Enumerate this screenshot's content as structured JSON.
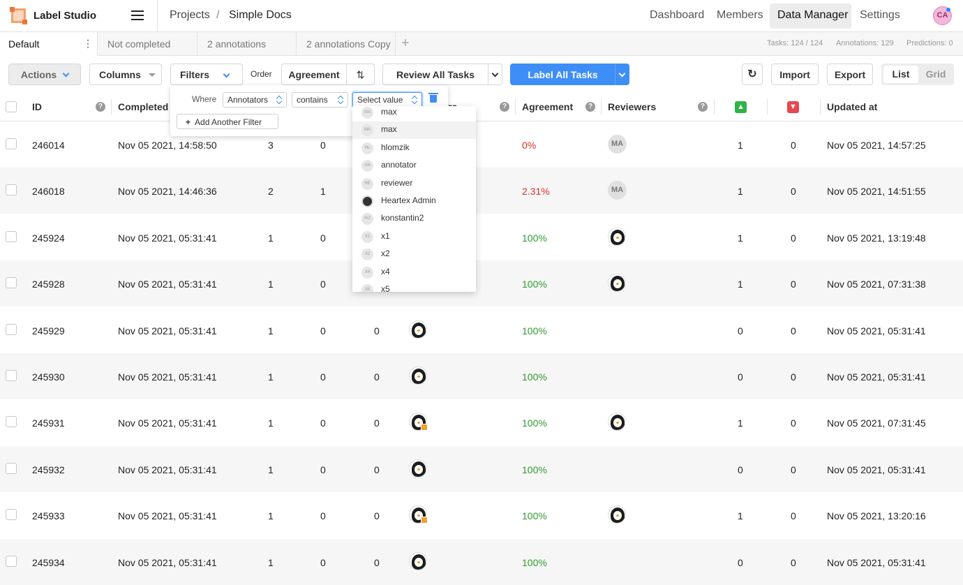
{
  "header": {
    "brand": "Label Studio",
    "breadcrumb_projects": "Projects",
    "breadcrumb_sep": "/",
    "breadcrumb_project": "Simple Docs",
    "nav": [
      "Dashboard",
      "Members",
      "Data Manager",
      "Settings"
    ],
    "avatar_initials": "CA"
  },
  "tabs": [
    "Default",
    "Not completed",
    "2 annotations",
    "2 annotations Copy"
  ],
  "stats": {
    "tasks": "Tasks: 124 / 124",
    "annotations": "Annotations: 129",
    "predictions": "Predictions: 0"
  },
  "toolbar": {
    "actions": "Actions",
    "columns": "Columns",
    "filters": "Filters",
    "order_label": "Order",
    "order_field": "Agreement",
    "review": "Review All Tasks",
    "label": "Label All Tasks",
    "import": "Import",
    "export": "Export",
    "view_list": "List",
    "view_grid": "Grid"
  },
  "filter": {
    "where": "Where",
    "field": "Annotators",
    "operator": "contains",
    "value_placeholder": "Select value",
    "add_filter": "Add Another Filter"
  },
  "dropdown_options": [
    {
      "initials": "MA",
      "label": "max"
    },
    {
      "initials": "MA",
      "label": "max"
    },
    {
      "initials": "HL",
      "label": "hlomzik"
    },
    {
      "initials": "AN",
      "label": "annotator"
    },
    {
      "initials": "RE",
      "label": "reviewer"
    },
    {
      "initials": "",
      "label": "Heartex Admin"
    },
    {
      "initials": "KO",
      "label": "konstantin2"
    },
    {
      "initials": "X1",
      "label": "x1"
    },
    {
      "initials": "X2",
      "label": "x2"
    },
    {
      "initials": "X4",
      "label": "x4"
    },
    {
      "initials": "X5",
      "label": "x5"
    }
  ],
  "columns": {
    "id": "ID",
    "completed": "Completed",
    "annotators_tail": "rs",
    "agreement": "Agreement",
    "reviewers": "Reviewers",
    "updated": "Updated at"
  },
  "rows": [
    {
      "id": "246014",
      "completed": "Nov 05 2021, 14:58:50",
      "c1": "3",
      "c2": "0",
      "c3": "",
      "agreement": "0%",
      "agreement_status": "low",
      "reviewer": "MA",
      "up": "1",
      "down": "0",
      "updated": "Nov 05 2021, 14:57:25"
    },
    {
      "id": "246018",
      "completed": "Nov 05 2021, 14:46:36",
      "c1": "2",
      "c2": "1",
      "c3": "",
      "agreement": "2.31%",
      "agreement_status": "low",
      "reviewer": "MA",
      "up": "1",
      "down": "0",
      "updated": "Nov 05 2021, 14:51:55"
    },
    {
      "id": "245924",
      "completed": "Nov 05 2021, 05:31:41",
      "c1": "1",
      "c2": "0",
      "c3": "",
      "agreement": "100%",
      "agreement_status": "high",
      "reviewer": "penguin",
      "up": "1",
      "down": "0",
      "updated": "Nov 05 2021, 13:19:48"
    },
    {
      "id": "245928",
      "completed": "Nov 05 2021, 05:31:41",
      "c1": "1",
      "c2": "0",
      "c3": "",
      "agreement": "100%",
      "agreement_status": "high",
      "reviewer": "penguin",
      "up": "1",
      "down": "0",
      "updated": "Nov 05 2021, 07:31:38"
    },
    {
      "id": "245929",
      "completed": "Nov 05 2021, 05:31:41",
      "c1": "1",
      "c2": "0",
      "c3": "0",
      "agreement": "100%",
      "agreement_status": "high",
      "reviewer": "",
      "up": "0",
      "down": "0",
      "updated": "Nov 05 2021, 05:31:41"
    },
    {
      "id": "245930",
      "completed": "Nov 05 2021, 05:31:41",
      "c1": "1",
      "c2": "0",
      "c3": "0",
      "agreement": "100%",
      "agreement_status": "high",
      "reviewer": "",
      "up": "0",
      "down": "0",
      "updated": "Nov 05 2021, 05:31:41"
    },
    {
      "id": "245931",
      "completed": "Nov 05 2021, 05:31:41",
      "c1": "1",
      "c2": "0",
      "c3": "0",
      "agreement": "100%",
      "agreement_status": "high",
      "reviewer": "penguin",
      "up": "1",
      "down": "0",
      "updated": "Nov 05 2021, 07:31:45"
    },
    {
      "id": "245932",
      "completed": "Nov 05 2021, 05:31:41",
      "c1": "1",
      "c2": "0",
      "c3": "0",
      "agreement": "100%",
      "agreement_status": "high",
      "reviewer": "",
      "up": "0",
      "down": "0",
      "updated": "Nov 05 2021, 05:31:41"
    },
    {
      "id": "245933",
      "completed": "Nov 05 2021, 05:31:41",
      "c1": "1",
      "c2": "0",
      "c3": "0",
      "agreement": "100%",
      "agreement_status": "high",
      "reviewer": "penguin",
      "up": "1",
      "down": "0",
      "updated": "Nov 05 2021, 13:20:16"
    },
    {
      "id": "245934",
      "completed": "Nov 05 2021, 05:31:41",
      "c1": "1",
      "c2": "0",
      "c3": "0",
      "agreement": "100%",
      "agreement_status": "high",
      "reviewer": "",
      "up": "0",
      "down": "0",
      "updated": "Nov 05 2021, 05:31:41"
    }
  ],
  "row_annotator_badges": [
    false,
    false,
    false,
    false,
    false,
    false,
    true,
    false,
    true,
    false
  ],
  "colors": {
    "accent": "#3e8ef7",
    "agreement_high": "#2f9a2f",
    "agreement_low": "#d93025",
    "thumb_up": "#2fb344",
    "thumb_down": "#e5484d"
  }
}
